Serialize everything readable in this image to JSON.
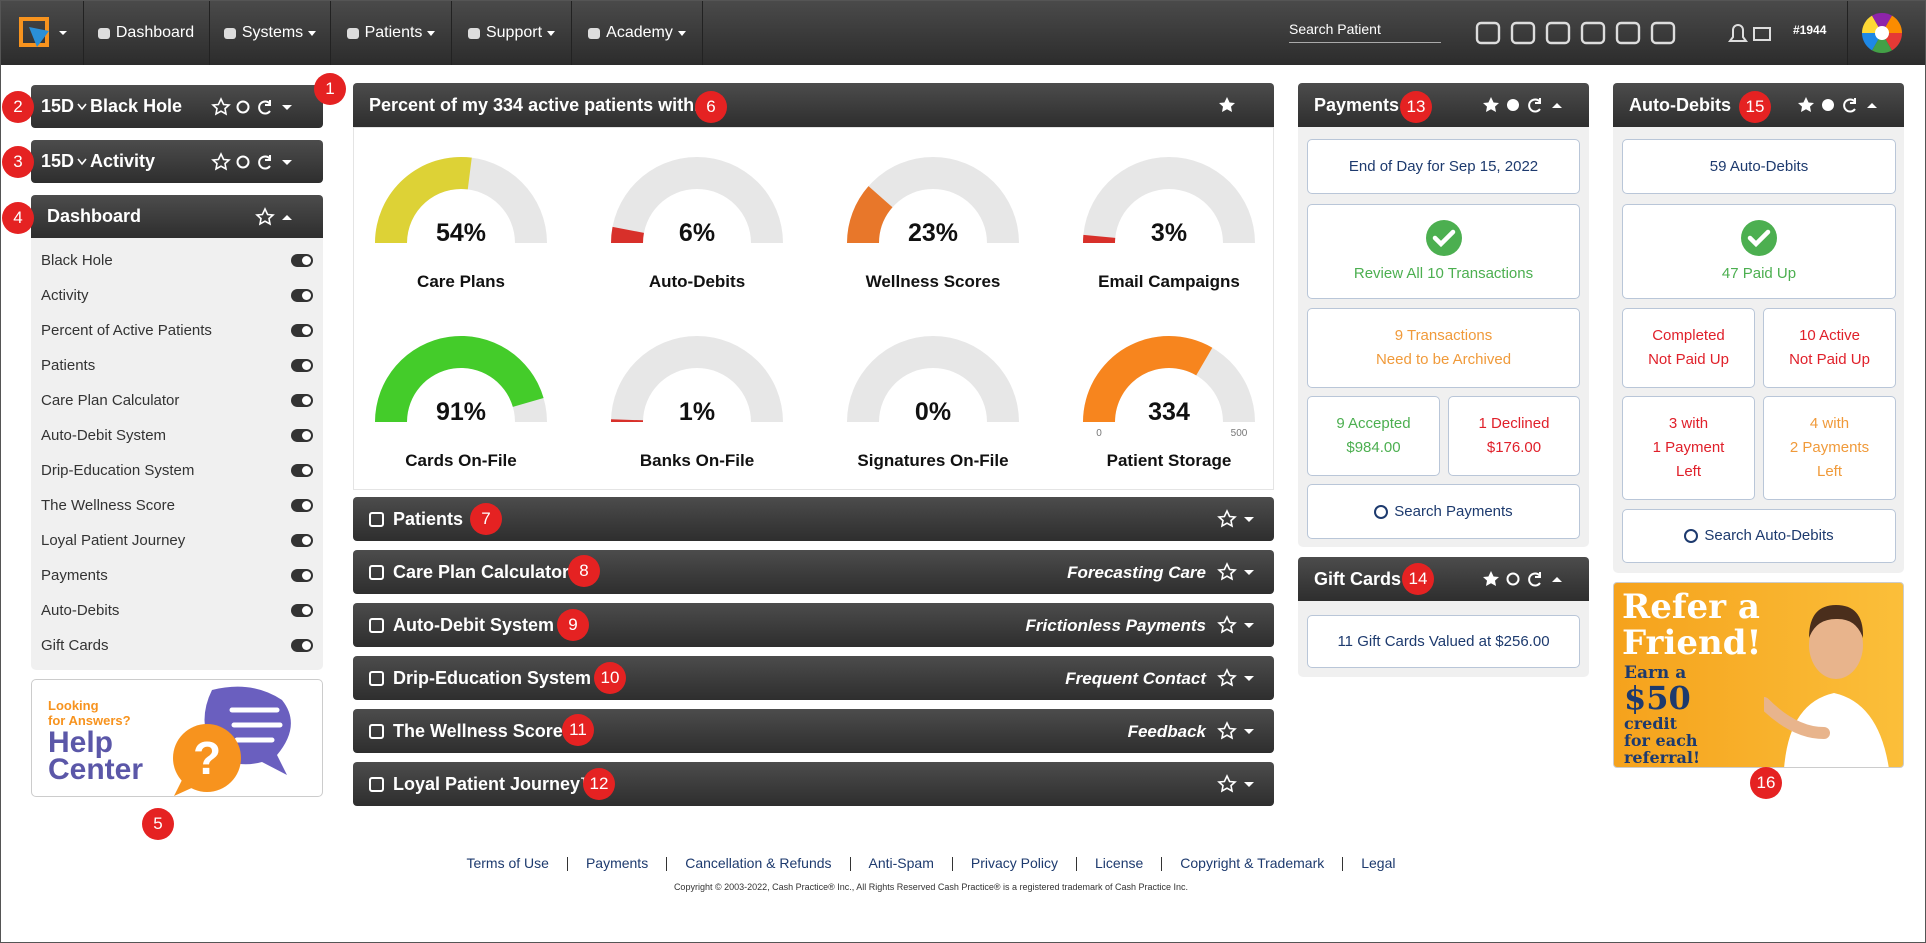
{
  "nav": {
    "items": [
      "Dashboard",
      "Systems",
      "Patients",
      "Support",
      "Academy"
    ],
    "search": "Search Patient",
    "user": "#1944"
  },
  "left": {
    "panels": [
      {
        "range": "15D",
        "title": "Black Hole"
      },
      {
        "range": "15D",
        "title": "Activity"
      }
    ],
    "dashboard": {
      "title": "Dashboard",
      "items": [
        "Black Hole",
        "Activity",
        "Percent of Active Patients",
        "Patients",
        "Care Plan Calculator",
        "Auto-Debit System",
        "Drip-Education System",
        "The Wellness Score",
        "Loyal Patient Journey",
        "Payments",
        "Auto-Debits",
        "Gift Cards"
      ]
    },
    "help": {
      "lines": [
        "Looking",
        "for Answers?"
      ],
      "big": [
        "Help",
        "Center"
      ],
      "mark": "?"
    }
  },
  "gauges": {
    "title": "Percent of my 334 active patients with...",
    "items": [
      {
        "label": "Care Plans",
        "value": 54,
        "value_label": "54%",
        "color": "#ddd236"
      },
      {
        "label": "Auto-Debits",
        "value": 6,
        "value_label": "6%",
        "color": "#d8302a"
      },
      {
        "label": "Wellness Scores",
        "value": 23,
        "value_label": "23%",
        "color": "#e8772a"
      },
      {
        "label": "Email Campaigns",
        "value": 3,
        "value_label": "3%",
        "color": "#d8302a"
      },
      {
        "label": "Cards On-File",
        "value": 91,
        "value_label": "91%",
        "color": "#44cc2a"
      },
      {
        "label": "Banks On-File",
        "value": 1,
        "value_label": "1%",
        "color": "#d8302a"
      },
      {
        "label": "Signatures On-File",
        "value": 0,
        "value_label": "0%",
        "color": "#d8302a"
      },
      {
        "label": "Patient Storage",
        "value": 334,
        "color": "#f7851e",
        "min": 0,
        "max": 500
      }
    ]
  },
  "sections": [
    {
      "title": "Patients"
    },
    {
      "title": "Care Plan Calculator",
      "subtitle": "Forecasting Care"
    },
    {
      "title": "Auto-Debit System",
      "subtitle": "Frictionless Payments"
    },
    {
      "title": "Drip-Education System",
      "subtitle": "Frequent Contact"
    },
    {
      "title": "The Wellness Score",
      "subtitle": "Feedback"
    },
    {
      "title": "Loyal Patient Journey™"
    }
  ],
  "payments": {
    "title": "Payments",
    "end_of_day": "End of Day for Sep 15, 2022",
    "review": "Review All 10 Transactions",
    "archive": [
      "9 Transactions",
      "Need to be Archived"
    ],
    "accepted": [
      "9 Accepted",
      "$984.00"
    ],
    "declined": [
      "1 Declined",
      "$176.00"
    ],
    "search": "Search Payments"
  },
  "gift_cards": {
    "title": "Gift Cards",
    "summary": "11 Gift Cards Valued at $256.00"
  },
  "auto_debits": {
    "title": "Auto-Debits",
    "count": "59 Auto-Debits",
    "paid": "47 Paid Up",
    "completed": [
      "Completed",
      "Not Paid Up"
    ],
    "active": [
      "10 Active",
      "Not Paid Up"
    ],
    "one_left": [
      "3 with",
      "1 Payment",
      "Left"
    ],
    "two_left": [
      "4 with",
      "2 Payments",
      "Left"
    ],
    "search": "Search Auto-Debits"
  },
  "refer": {
    "big": [
      "Refer a",
      "Friend!"
    ],
    "small": [
      "Earn a"
    ],
    "amount": "$50",
    "rest": [
      "credit",
      "for each",
      "referral!"
    ]
  },
  "footer": {
    "links": [
      "Terms of Use",
      "Payments",
      "Cancellation & Refunds",
      "Anti-Spam",
      "Privacy Policy",
      "License",
      "Copyright & Trademark",
      "Legal"
    ],
    "copyright": "Copyright © 2003-2022, Cash Practice® Inc., All Rights Reserved Cash Practice® is a registered trademark of Cash Practice Inc."
  },
  "badges": [
    1,
    2,
    3,
    4,
    5,
    6,
    7,
    8,
    9,
    10,
    11,
    12,
    13,
    14,
    15,
    16
  ]
}
